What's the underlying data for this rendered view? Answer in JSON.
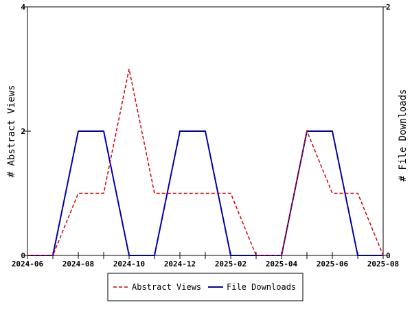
{
  "chart_data": {
    "type": "line",
    "title": "",
    "xlabel": "",
    "ylabel": "# Abstract Views",
    "y2label": "# File Downloads",
    "x": [
      "2024-06",
      "2024-07",
      "2024-08",
      "2024-09",
      "2024-10",
      "2024-11",
      "2024-12",
      "2025-01",
      "2025-02",
      "2025-03",
      "2025-04",
      "2025-05",
      "2025-06",
      "2025-07",
      "2025-08"
    ],
    "x_tick_labels": [
      "2024-06",
      "2024-08",
      "2024-10",
      "2024-12",
      "2025-02",
      "2025-04",
      "2025-06",
      "2025-08"
    ],
    "ylim": [
      0,
      4
    ],
    "y_ticks": [
      "0",
      "2",
      "4"
    ],
    "y2lim": [
      0,
      2
    ],
    "y2_ticks": [
      "0",
      "2"
    ],
    "grid": false,
    "legend_position": "bottom",
    "series": [
      {
        "name": "Abstract Views",
        "axis": "left",
        "color": "#cc0000",
        "style": "dashed",
        "values": [
          0,
          0,
          1,
          1,
          3,
          1,
          1,
          1,
          1,
          0,
          0,
          2,
          1,
          1,
          0
        ]
      },
      {
        "name": "File Downloads",
        "axis": "right",
        "color": "#0000aa",
        "style": "solid",
        "values": [
          0,
          0,
          1,
          1,
          0,
          0,
          1,
          1,
          0,
          0,
          0,
          1,
          1,
          0,
          0
        ]
      }
    ]
  }
}
